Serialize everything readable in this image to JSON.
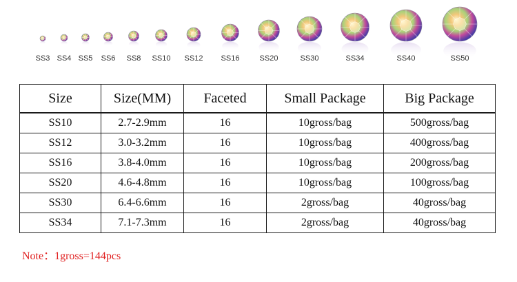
{
  "gems": [
    {
      "label": "SS3"
    },
    {
      "label": "SS4"
    },
    {
      "label": "SS5"
    },
    {
      "label": "SS6"
    },
    {
      "label": "SS8"
    },
    {
      "label": "SS10"
    },
    {
      "label": "SS12"
    },
    {
      "label": "SS16"
    },
    {
      "label": "SS20"
    },
    {
      "label": "SS30"
    },
    {
      "label": "SS34"
    },
    {
      "label": "SS40"
    },
    {
      "label": "SS50"
    }
  ],
  "table": {
    "headers": [
      "Size",
      "Size(MM)",
      "Faceted",
      "Small Package",
      "Big Package"
    ],
    "rows": [
      [
        "SS10",
        "2.7-2.9mm",
        "16",
        "10gross/bag",
        "500gross/bag"
      ],
      [
        "SS12",
        "3.0-3.2mm",
        "16",
        "10gross/bag",
        "400gross/bag"
      ],
      [
        "SS16",
        "3.8-4.0mm",
        "16",
        "10gross/bag",
        "200gross/bag"
      ],
      [
        "SS20",
        "4.6-4.8mm",
        "16",
        "10gross/bag",
        "100gross/bag"
      ],
      [
        "SS30",
        "6.4-6.6mm",
        "16",
        "2gross/bag",
        "40gross/bag"
      ],
      [
        "SS34",
        "7.1-7.3mm",
        "16",
        "2gross/bag",
        "40gross/bag"
      ]
    ]
  },
  "note": "Note：1gross=144pcs",
  "colors": {
    "note": "#e02020",
    "border": "#1a1a1a"
  }
}
